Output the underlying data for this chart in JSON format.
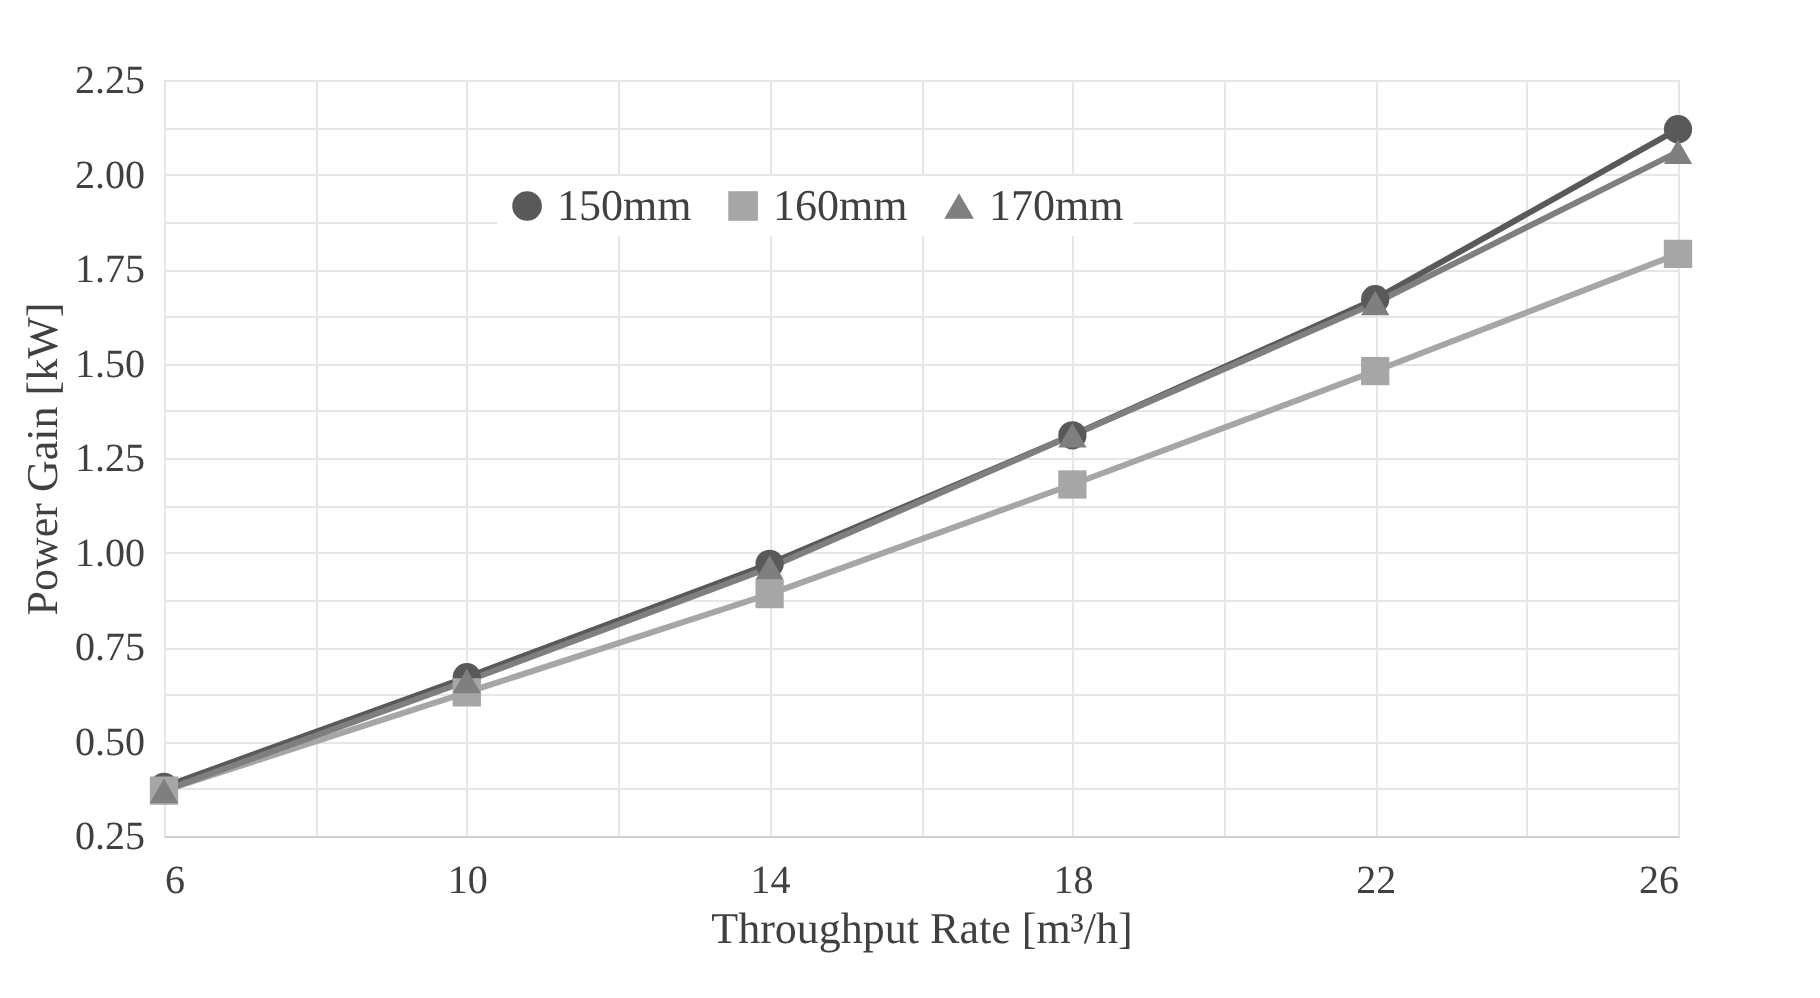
{
  "chart_data": {
    "type": "line",
    "xlabel": "Throughput Rate [m³/h]",
    "ylabel": "Power Gain [kW]",
    "x": [
      6,
      10,
      14,
      18,
      22,
      26
    ],
    "series": [
      {
        "name": "150mm",
        "color": "#595959",
        "marker": "circle",
        "values": [
          0.38,
          0.67,
          0.97,
          1.31,
          1.67,
          2.12
        ]
      },
      {
        "name": "160mm",
        "color": "#a6a6a6",
        "marker": "square",
        "values": [
          0.37,
          0.63,
          0.89,
          1.18,
          1.48,
          1.79
        ]
      },
      {
        "name": "170mm",
        "color": "#7f7f7f",
        "marker": "triangle",
        "values": [
          0.37,
          0.66,
          0.96,
          1.31,
          1.66,
          2.06
        ]
      }
    ],
    "xlim": [
      6,
      26
    ],
    "xticks": [
      6,
      {
        "value": 8,
        "label": null
      },
      10,
      {
        "value": 12,
        "label": null
      },
      14,
      {
        "value": 16,
        "label": null
      },
      18,
      {
        "value": 20,
        "label": null
      },
      22,
      {
        "value": 24,
        "label": null
      },
      26
    ],
    "ylim": [
      0.25,
      2.25
    ],
    "yticks": [
      {
        "value": 0.25,
        "label": "0.25"
      },
      {
        "value": 0.375,
        "label": null
      },
      {
        "value": 0.5,
        "label": "0.50"
      },
      {
        "value": 0.625,
        "label": null
      },
      {
        "value": 0.75,
        "label": "0.75"
      },
      {
        "value": 0.875,
        "label": null
      },
      {
        "value": 1.0,
        "label": "1.00"
      },
      {
        "value": 1.125,
        "label": null
      },
      {
        "value": 1.25,
        "label": "1.25"
      },
      {
        "value": 1.375,
        "label": null
      },
      {
        "value": 1.5,
        "label": "1.50"
      },
      {
        "value": 1.625,
        "label": null
      },
      {
        "value": 1.75,
        "label": "1.75"
      },
      {
        "value": 1.875,
        "label": null
      },
      {
        "value": 2.0,
        "label": "2.00"
      },
      {
        "value": 2.125,
        "label": null
      },
      {
        "value": 2.25,
        "label": "2.25"
      }
    ],
    "grid": true,
    "legend": "top",
    "line_style": "solid"
  }
}
